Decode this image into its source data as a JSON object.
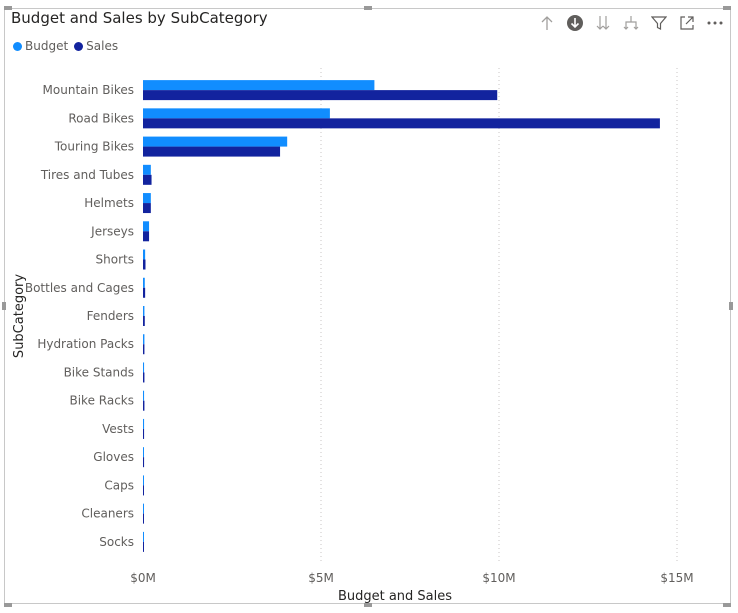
{
  "visual": {
    "title": "Budget and Sales by SubCategory",
    "toolbar": {
      "icons": [
        "drill-up-icon",
        "drill-down-icon",
        "expand-next-level-icon",
        "expand-hierarchy-icon",
        "filter-icon",
        "focus-mode-icon",
        "more-options-icon"
      ]
    }
  },
  "legend": {
    "items": [
      {
        "label": "Budget",
        "color": "#118DFF"
      },
      {
        "label": "Sales",
        "color": "#12239E"
      }
    ]
  },
  "chart_data": {
    "type": "bar",
    "orientation": "horizontal",
    "categories": [
      "Mountain Bikes",
      "Road Bikes",
      "Touring Bikes",
      "Tires and Tubes",
      "Helmets",
      "Jerseys",
      "Shorts",
      "Bottles and Cages",
      "Fenders",
      "Hydration Packs",
      "Bike Stands",
      "Bike Racks",
      "Vests",
      "Gloves",
      "Caps",
      "Cleaners",
      "Socks"
    ],
    "series": [
      {
        "name": "Budget",
        "color": "#118DFF",
        "values": [
          6.5,
          5.25,
          4.05,
          0.22,
          0.22,
          0.17,
          0.06,
          0.05,
          0.04,
          0.04,
          0.03,
          0.03,
          0.03,
          0.02,
          0.02,
          0.02,
          0.01
        ]
      },
      {
        "name": "Sales",
        "color": "#12239E",
        "values": [
          9.95,
          14.52,
          3.85,
          0.24,
          0.22,
          0.17,
          0.07,
          0.06,
          0.05,
          0.04,
          0.04,
          0.04,
          0.03,
          0.03,
          0.02,
          0.01,
          0.01
        ]
      }
    ],
    "value_unit": "M",
    "xlabel": "Budget and Sales",
    "ylabel": "SubCategory",
    "xlim": [
      0,
      15
    ],
    "xticks": [
      {
        "value": 0,
        "label": "$0M"
      },
      {
        "value": 5,
        "label": "$5M"
      },
      {
        "value": 10,
        "label": "$10M"
      },
      {
        "value": 15,
        "label": "$15M"
      }
    ],
    "grid": "vertical-dotted",
    "legend_position": "top-left"
  }
}
